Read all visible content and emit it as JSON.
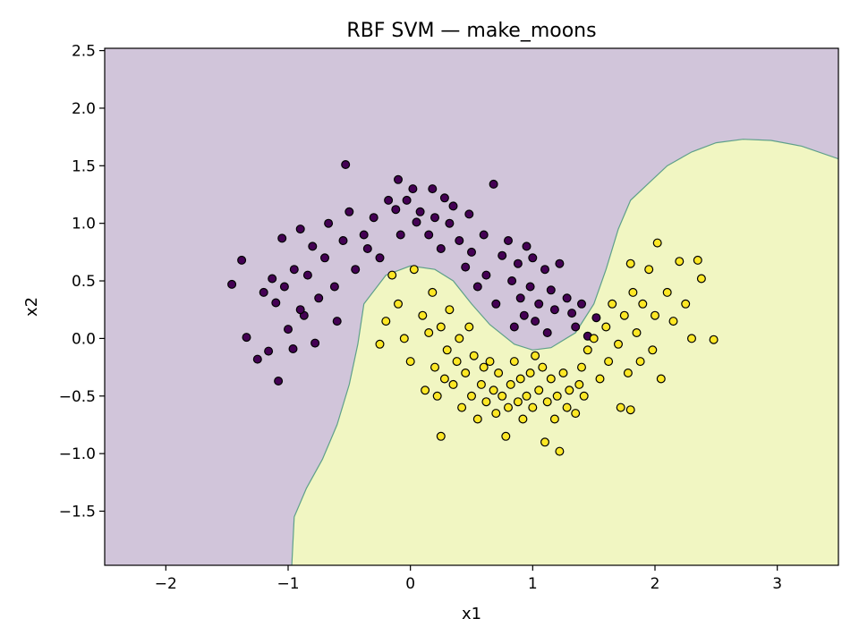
{
  "chart_data": {
    "type": "scatter",
    "title": "RBF SVM — make_moons",
    "xlabel": "x1",
    "ylabel": "x2",
    "xlim": [
      -2.5,
      3.5
    ],
    "ylim": [
      -1.97,
      2.52
    ],
    "xticks": [
      -2,
      -1,
      0,
      1,
      2,
      3
    ],
    "yticks": [
      -1.5,
      -1.0,
      -0.5,
      0.0,
      0.5,
      1.0,
      1.5,
      2.0,
      2.5
    ],
    "xtick_labels": [
      "−2",
      "−1",
      "0",
      "1",
      "2",
      "3"
    ],
    "ytick_labels": [
      "−1.5",
      "−1.0",
      "−0.5",
      "0.0",
      "0.5",
      "1.0",
      "1.5",
      "2.0",
      "2.5"
    ],
    "grid": false,
    "legend": "none",
    "background_regions": [
      {
        "class": 0,
        "color": "#d1c5da"
      },
      {
        "class": 1,
        "color": "#f1f6c2"
      }
    ],
    "decision_boundary": {
      "color": "#5fa08a",
      "points": [
        [
          -0.97,
          -1.97
        ],
        [
          -0.95,
          -1.55
        ],
        [
          -0.85,
          -1.3
        ],
        [
          -0.72,
          -1.05
        ],
        [
          -0.6,
          -0.75
        ],
        [
          -0.5,
          -0.4
        ],
        [
          -0.43,
          -0.05
        ],
        [
          -0.38,
          0.3
        ],
        [
          -0.2,
          0.55
        ],
        [
          0.0,
          0.63
        ],
        [
          0.2,
          0.6
        ],
        [
          0.35,
          0.5
        ],
        [
          0.5,
          0.3
        ],
        [
          0.65,
          0.12
        ],
        [
          0.85,
          -0.05
        ],
        [
          1.0,
          -0.1
        ],
        [
          1.15,
          -0.08
        ],
        [
          1.35,
          0.05
        ],
        [
          1.5,
          0.3
        ],
        [
          1.6,
          0.6
        ],
        [
          1.7,
          0.95
        ],
        [
          1.8,
          1.2
        ],
        [
          1.95,
          1.35
        ],
        [
          2.1,
          1.5
        ],
        [
          2.3,
          1.62
        ],
        [
          2.5,
          1.7
        ],
        [
          2.72,
          1.73
        ],
        [
          2.95,
          1.72
        ],
        [
          3.2,
          1.67
        ],
        [
          3.5,
          1.56
        ]
      ]
    },
    "series": [
      {
        "class": 0,
        "color": "#440154",
        "points": [
          [
            -1.46,
            0.47
          ],
          [
            -1.38,
            0.68
          ],
          [
            -1.34,
            0.01
          ],
          [
            -1.25,
            -0.18
          ],
          [
            -1.2,
            0.4
          ],
          [
            -1.16,
            -0.11
          ],
          [
            -1.13,
            0.52
          ],
          [
            -1.1,
            0.31
          ],
          [
            -1.08,
            -0.37
          ],
          [
            -1.05,
            0.87
          ],
          [
            -1.03,
            0.45
          ],
          [
            -1.0,
            0.08
          ],
          [
            -0.96,
            -0.09
          ],
          [
            -0.95,
            0.6
          ],
          [
            -0.9,
            0.95
          ],
          [
            -0.87,
            0.2
          ],
          [
            -0.84,
            0.55
          ],
          [
            -0.8,
            0.8
          ],
          [
            -0.78,
            -0.04
          ],
          [
            -0.75,
            0.35
          ],
          [
            -0.7,
            0.7
          ],
          [
            -0.67,
            1.0
          ],
          [
            -0.62,
            0.45
          ],
          [
            -0.6,
            0.15
          ],
          [
            -0.55,
            0.85
          ],
          [
            -0.53,
            1.51
          ],
          [
            -0.5,
            1.1
          ],
          [
            -0.45,
            0.6
          ],
          [
            -0.38,
            0.9
          ],
          [
            -0.3,
            1.05
          ],
          [
            -0.25,
            0.7
          ],
          [
            -0.18,
            1.2
          ],
          [
            -0.12,
            1.12
          ],
          [
            -0.08,
            0.9
          ],
          [
            -0.03,
            1.2
          ],
          [
            0.02,
            1.3
          ],
          [
            0.08,
            1.1
          ],
          [
            0.15,
            0.9
          ],
          [
            0.18,
            1.3
          ],
          [
            0.2,
            1.05
          ],
          [
            0.25,
            0.78
          ],
          [
            0.28,
            1.22
          ],
          [
            0.32,
            1.0
          ],
          [
            0.35,
            1.15
          ],
          [
            0.4,
            0.85
          ],
          [
            0.45,
            0.62
          ],
          [
            0.48,
            1.08
          ],
          [
            0.5,
            0.75
          ],
          [
            0.55,
            0.45
          ],
          [
            0.6,
            0.9
          ],
          [
            0.62,
            0.55
          ],
          [
            0.68,
            1.34
          ],
          [
            0.7,
            0.3
          ],
          [
            0.75,
            0.72
          ],
          [
            0.8,
            0.85
          ],
          [
            0.83,
            0.5
          ],
          [
            0.85,
            0.1
          ],
          [
            0.88,
            0.65
          ],
          [
            0.9,
            0.35
          ],
          [
            0.93,
            0.2
          ],
          [
            0.95,
            0.8
          ],
          [
            0.98,
            0.45
          ],
          [
            1.0,
            0.7
          ],
          [
            1.02,
            0.15
          ],
          [
            1.05,
            0.3
          ],
          [
            1.1,
            0.6
          ],
          [
            1.12,
            0.05
          ],
          [
            1.15,
            0.42
          ],
          [
            1.18,
            0.25
          ],
          [
            1.22,
            0.65
          ],
          [
            1.28,
            0.35
          ],
          [
            1.32,
            0.22
          ],
          [
            1.35,
            0.1
          ],
          [
            1.4,
            0.3
          ],
          [
            1.45,
            0.02
          ],
          [
            1.52,
            0.18
          ],
          [
            -0.1,
            1.38
          ],
          [
            0.05,
            1.01
          ],
          [
            -0.35,
            0.78
          ],
          [
            -0.9,
            0.25
          ]
        ]
      },
      {
        "class": 1,
        "color": "#fde725",
        "points": [
          [
            -0.25,
            -0.05
          ],
          [
            -0.2,
            0.15
          ],
          [
            -0.15,
            0.55
          ],
          [
            -0.1,
            0.3
          ],
          [
            -0.05,
            0.0
          ],
          [
            0.0,
            -0.2
          ],
          [
            0.03,
            0.6
          ],
          [
            0.1,
            0.2
          ],
          [
            0.12,
            -0.45
          ],
          [
            0.15,
            0.05
          ],
          [
            0.18,
            0.4
          ],
          [
            0.2,
            -0.25
          ],
          [
            0.22,
            -0.5
          ],
          [
            0.25,
            0.1
          ],
          [
            0.28,
            -0.35
          ],
          [
            0.3,
            -0.1
          ],
          [
            0.32,
            0.25
          ],
          [
            0.35,
            -0.4
          ],
          [
            0.38,
            -0.2
          ],
          [
            0.4,
            0.0
          ],
          [
            0.42,
            -0.6
          ],
          [
            0.45,
            -0.3
          ],
          [
            0.48,
            0.1
          ],
          [
            0.5,
            -0.5
          ],
          [
            0.52,
            -0.15
          ],
          [
            0.55,
            -0.7
          ],
          [
            0.58,
            -0.4
          ],
          [
            0.6,
            -0.25
          ],
          [
            0.62,
            -0.55
          ],
          [
            0.65,
            -0.2
          ],
          [
            0.68,
            -0.45
          ],
          [
            0.7,
            -0.65
          ],
          [
            0.72,
            -0.3
          ],
          [
            0.75,
            -0.5
          ],
          [
            0.78,
            -0.85
          ],
          [
            0.8,
            -0.6
          ],
          [
            0.82,
            -0.4
          ],
          [
            0.85,
            -0.2
          ],
          [
            0.88,
            -0.55
          ],
          [
            0.9,
            -0.35
          ],
          [
            0.92,
            -0.7
          ],
          [
            0.95,
            -0.5
          ],
          [
            0.98,
            -0.3
          ],
          [
            1.0,
            -0.6
          ],
          [
            1.02,
            -0.15
          ],
          [
            1.05,
            -0.45
          ],
          [
            1.08,
            -0.25
          ],
          [
            1.1,
            -0.9
          ],
          [
            1.12,
            -0.55
          ],
          [
            1.15,
            -0.35
          ],
          [
            1.18,
            -0.7
          ],
          [
            1.2,
            -0.5
          ],
          [
            1.22,
            -0.98
          ],
          [
            1.25,
            -0.3
          ],
          [
            1.28,
            -0.6
          ],
          [
            1.3,
            -0.45
          ],
          [
            1.35,
            -0.65
          ],
          [
            1.38,
            -0.4
          ],
          [
            1.4,
            -0.25
          ],
          [
            1.42,
            -0.5
          ],
          [
            1.45,
            -0.1
          ],
          [
            1.5,
            0.0
          ],
          [
            1.55,
            -0.35
          ],
          [
            1.6,
            0.1
          ],
          [
            1.62,
            -0.2
          ],
          [
            1.65,
            0.3
          ],
          [
            1.7,
            -0.05
          ],
          [
            1.72,
            -0.6
          ],
          [
            1.75,
            0.2
          ],
          [
            1.78,
            -0.3
          ],
          [
            1.8,
            0.65
          ],
          [
            1.82,
            0.4
          ],
          [
            1.85,
            0.05
          ],
          [
            1.88,
            -0.2
          ],
          [
            1.9,
            0.3
          ],
          [
            1.95,
            0.6
          ],
          [
            1.98,
            -0.1
          ],
          [
            2.0,
            0.2
          ],
          [
            2.02,
            0.83
          ],
          [
            2.05,
            -0.35
          ],
          [
            2.1,
            0.4
          ],
          [
            2.15,
            0.15
          ],
          [
            2.2,
            0.67
          ],
          [
            2.25,
            0.3
          ],
          [
            2.3,
            0.0
          ],
          [
            2.35,
            0.68
          ],
          [
            2.38,
            0.52
          ],
          [
            2.48,
            -0.01
          ],
          [
            0.25,
            -0.85
          ],
          [
            1.8,
            -0.62
          ]
        ]
      }
    ],
    "marker_edge_color": "#000000"
  }
}
